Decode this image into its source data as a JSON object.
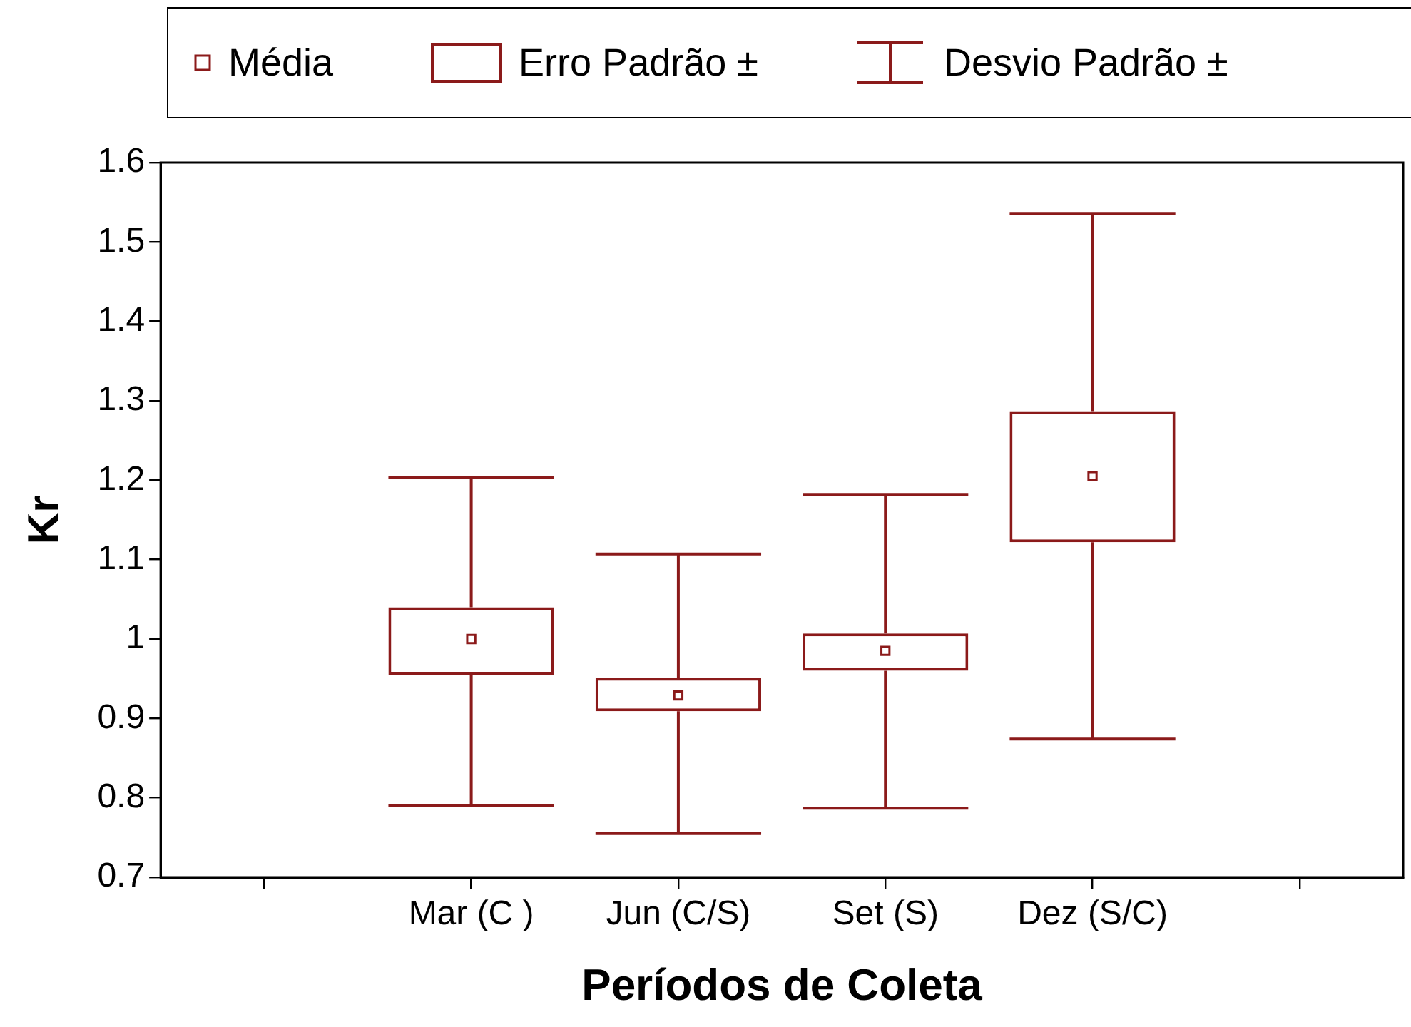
{
  "chart_data": {
    "type": "box",
    "xlabel": "Períodos de Coleta",
    "ylabel": "Kr",
    "categories": [
      null,
      "Mar (C )",
      "Jun (C/S)",
      "Set (S)",
      "Dez (S/C)",
      null
    ],
    "series": [
      {
        "color": "#8b1a1a",
        "boxes": [
          null,
          {
            "low": 0.79,
            "q1": 0.955,
            "mean": 1.0,
            "q3": 1.04,
            "high": 1.204
          },
          {
            "low": 0.755,
            "q1": 0.909,
            "mean": 0.929,
            "q3": 0.951,
            "high": 1.107
          },
          {
            "low": 0.787,
            "q1": 0.96,
            "mean": 0.985,
            "q3": 1.007,
            "high": 1.182
          },
          {
            "low": 0.874,
            "q1": 1.122,
            "mean": 1.205,
            "q3": 1.287,
            "high": 1.536
          },
          null
        ]
      }
    ],
    "ylim": [
      0.7,
      1.6
    ],
    "yticks": [
      0.7,
      0.8,
      0.9,
      1,
      1.1,
      1.2,
      1.3,
      1.4,
      1.5,
      1.6
    ],
    "grid": false,
    "marker": "square",
    "annotations": [
      "Média",
      "Erro Padrão ±",
      "Desvio Padrão ±"
    ]
  }
}
